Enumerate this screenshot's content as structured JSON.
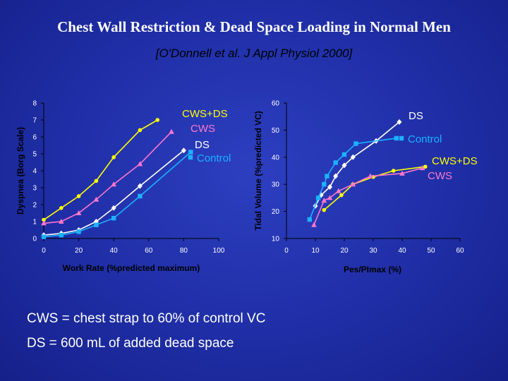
{
  "title": "Chest Wall Restriction & Dead Space Loading in Normal Men",
  "subtitle": "[O'Donnell et al.  J Appl Physiol 2000]",
  "notes": [
    "CWS = chest strap to 60% of control VC",
    "DS = 600 mL of added dead space"
  ],
  "colors": {
    "CWS+DS": "#ffff00",
    "CWS": "#ff77cc",
    "DS": "#ffffff",
    "Control": "#1ab2ff",
    "axis": "#000000",
    "text": "#ffffff"
  },
  "chart_data": [
    {
      "type": "line",
      "xlabel": "Work Rate (%predicted maximum)",
      "ylabel": "Dyspnea (Borg Scale)",
      "xlim": [
        0,
        100
      ],
      "ylim": [
        0,
        8
      ],
      "xticks": [
        0,
        20,
        40,
        60,
        80,
        100
      ],
      "yticks": [
        0,
        1,
        2,
        3,
        4,
        5,
        6,
        7,
        8
      ],
      "grid": false,
      "legend": "inline labels, top-right of plot",
      "series": [
        {
          "name": "CWS+DS",
          "marker": "circle",
          "x": [
            0,
            10,
            20,
            30,
            40,
            55,
            65
          ],
          "y": [
            1.1,
            1.8,
            2.5,
            3.4,
            4.8,
            6.4,
            7.0
          ]
        },
        {
          "name": "CWS",
          "marker": "triangle",
          "x": [
            0,
            10,
            20,
            30,
            40,
            55,
            73
          ],
          "y": [
            0.9,
            1.0,
            1.5,
            2.3,
            3.2,
            4.4,
            6.3
          ]
        },
        {
          "name": "DS",
          "marker": "diamond",
          "x": [
            0,
            10,
            20,
            30,
            40,
            55,
            80
          ],
          "y": [
            0.2,
            0.3,
            0.5,
            1.0,
            1.8,
            3.1,
            5.2
          ]
        },
        {
          "name": "Control",
          "marker": "square",
          "x": [
            0,
            10,
            20,
            30,
            40,
            55,
            84
          ],
          "y": [
            0.1,
            0.2,
            0.4,
            0.8,
            1.2,
            2.5,
            5.1
          ]
        }
      ]
    },
    {
      "type": "line",
      "xlabel": "Pes/PImax (%)",
      "ylabel": "Tidal Volume (%predicted VC)",
      "xlim": [
        0,
        60
      ],
      "ylim": [
        10,
        60
      ],
      "xticks": [
        0,
        10,
        20,
        30,
        40,
        50,
        60
      ],
      "yticks": [
        10,
        20,
        30,
        40,
        50,
        60
      ],
      "grid": false,
      "legend": "inline labels, right of plot",
      "series": [
        {
          "name": "DS",
          "marker": "diamond",
          "x": [
            10,
            12,
            15,
            17,
            20,
            23,
            31,
            39
          ],
          "y": [
            22,
            26,
            29,
            33,
            37,
            40,
            46,
            53
          ]
        },
        {
          "name": "Control",
          "marker": "square",
          "x": [
            8,
            11,
            13,
            14,
            17,
            20,
            24,
            38
          ],
          "y": [
            17,
            25,
            30,
            33,
            38,
            41,
            45,
            47
          ]
        },
        {
          "name": "CWS+DS",
          "marker": "circle",
          "x": [
            13,
            19,
            23,
            30,
            37,
            48
          ],
          "y": [
            20.5,
            26,
            30,
            32.7,
            35,
            36.5
          ]
        },
        {
          "name": "CWS",
          "marker": "triangle",
          "x": [
            9.5,
            13,
            15,
            18,
            23,
            29,
            40,
            47
          ],
          "y": [
            15,
            24,
            25,
            27.5,
            30,
            33,
            34,
            36
          ]
        }
      ]
    }
  ]
}
